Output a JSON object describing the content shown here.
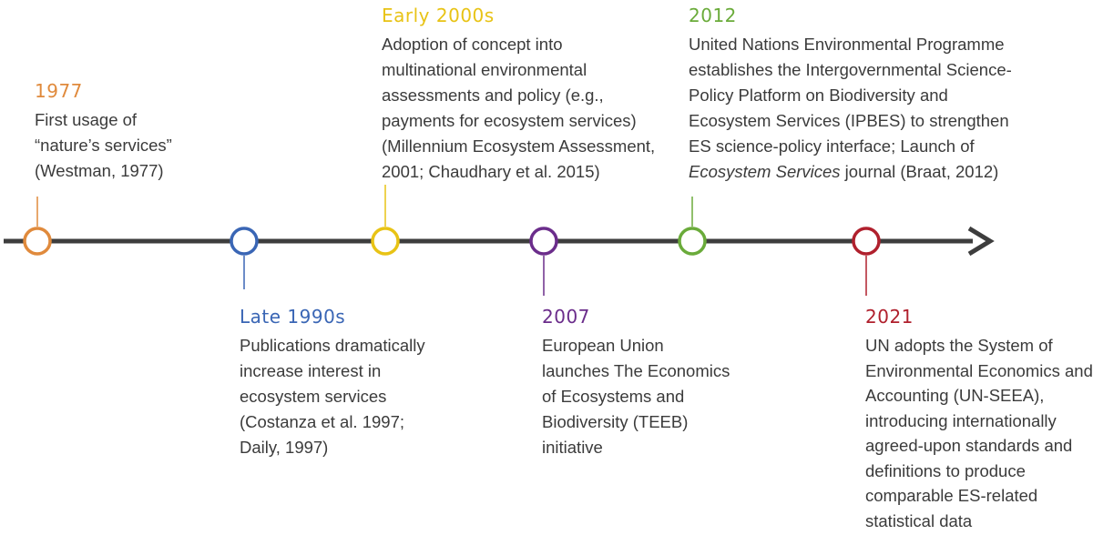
{
  "events": [
    {
      "year": "1977",
      "color": "#e08a3c",
      "lines": [
        "First usage of",
        "“nature’s services”",
        "(Westman, 1977)"
      ]
    },
    {
      "year": "Late 1990s",
      "color": "#3a66b5",
      "lines": [
        "Publications dramatically",
        "increase interest in",
        "ecosystem services",
        "(Costanza et al. 1997;",
        "Daily, 1997)"
      ]
    },
    {
      "year": "Early 2000s",
      "color": "#e8c315",
      "lines": [
        "Adoption of concept into",
        "multinational environmental",
        "assessments and policy (e.g.,",
        "payments for ecosystem services)",
        "(Millennium Ecosystem Assessment,",
        "2001; Chaudhary et al. 2015)"
      ]
    },
    {
      "year": "2007",
      "color": "#6b2d8b",
      "lines": [
        "European Union",
        "launches The Economics",
        "of Ecosystems and",
        "Biodiversity (TEEB)",
        "initiative"
      ]
    },
    {
      "year": "2012",
      "color": "#6aab3a",
      "lines": [
        "United Nations Environmental Programme",
        "establishes the Intergovernmental Science-",
        "Policy Platform on Biodiversity and",
        "Ecosystem Services (IPBES) to strengthen",
        "ES science-policy interface; Launch of"
      ],
      "last_italic": "Ecosystem Services",
      "last_rest": " journal (Braat, 2012)"
    },
    {
      "year": "2021",
      "color": "#b0202d",
      "lines": [
        "UN adopts the System of",
        "Environmental Economics and",
        "Accounting (UN-SEEA),",
        "introducing internationally",
        "agreed-upon standards and",
        "definitions to produce",
        "comparable ES-related",
        "statistical data"
      ]
    }
  ],
  "axis_color": "#3d3d3d"
}
